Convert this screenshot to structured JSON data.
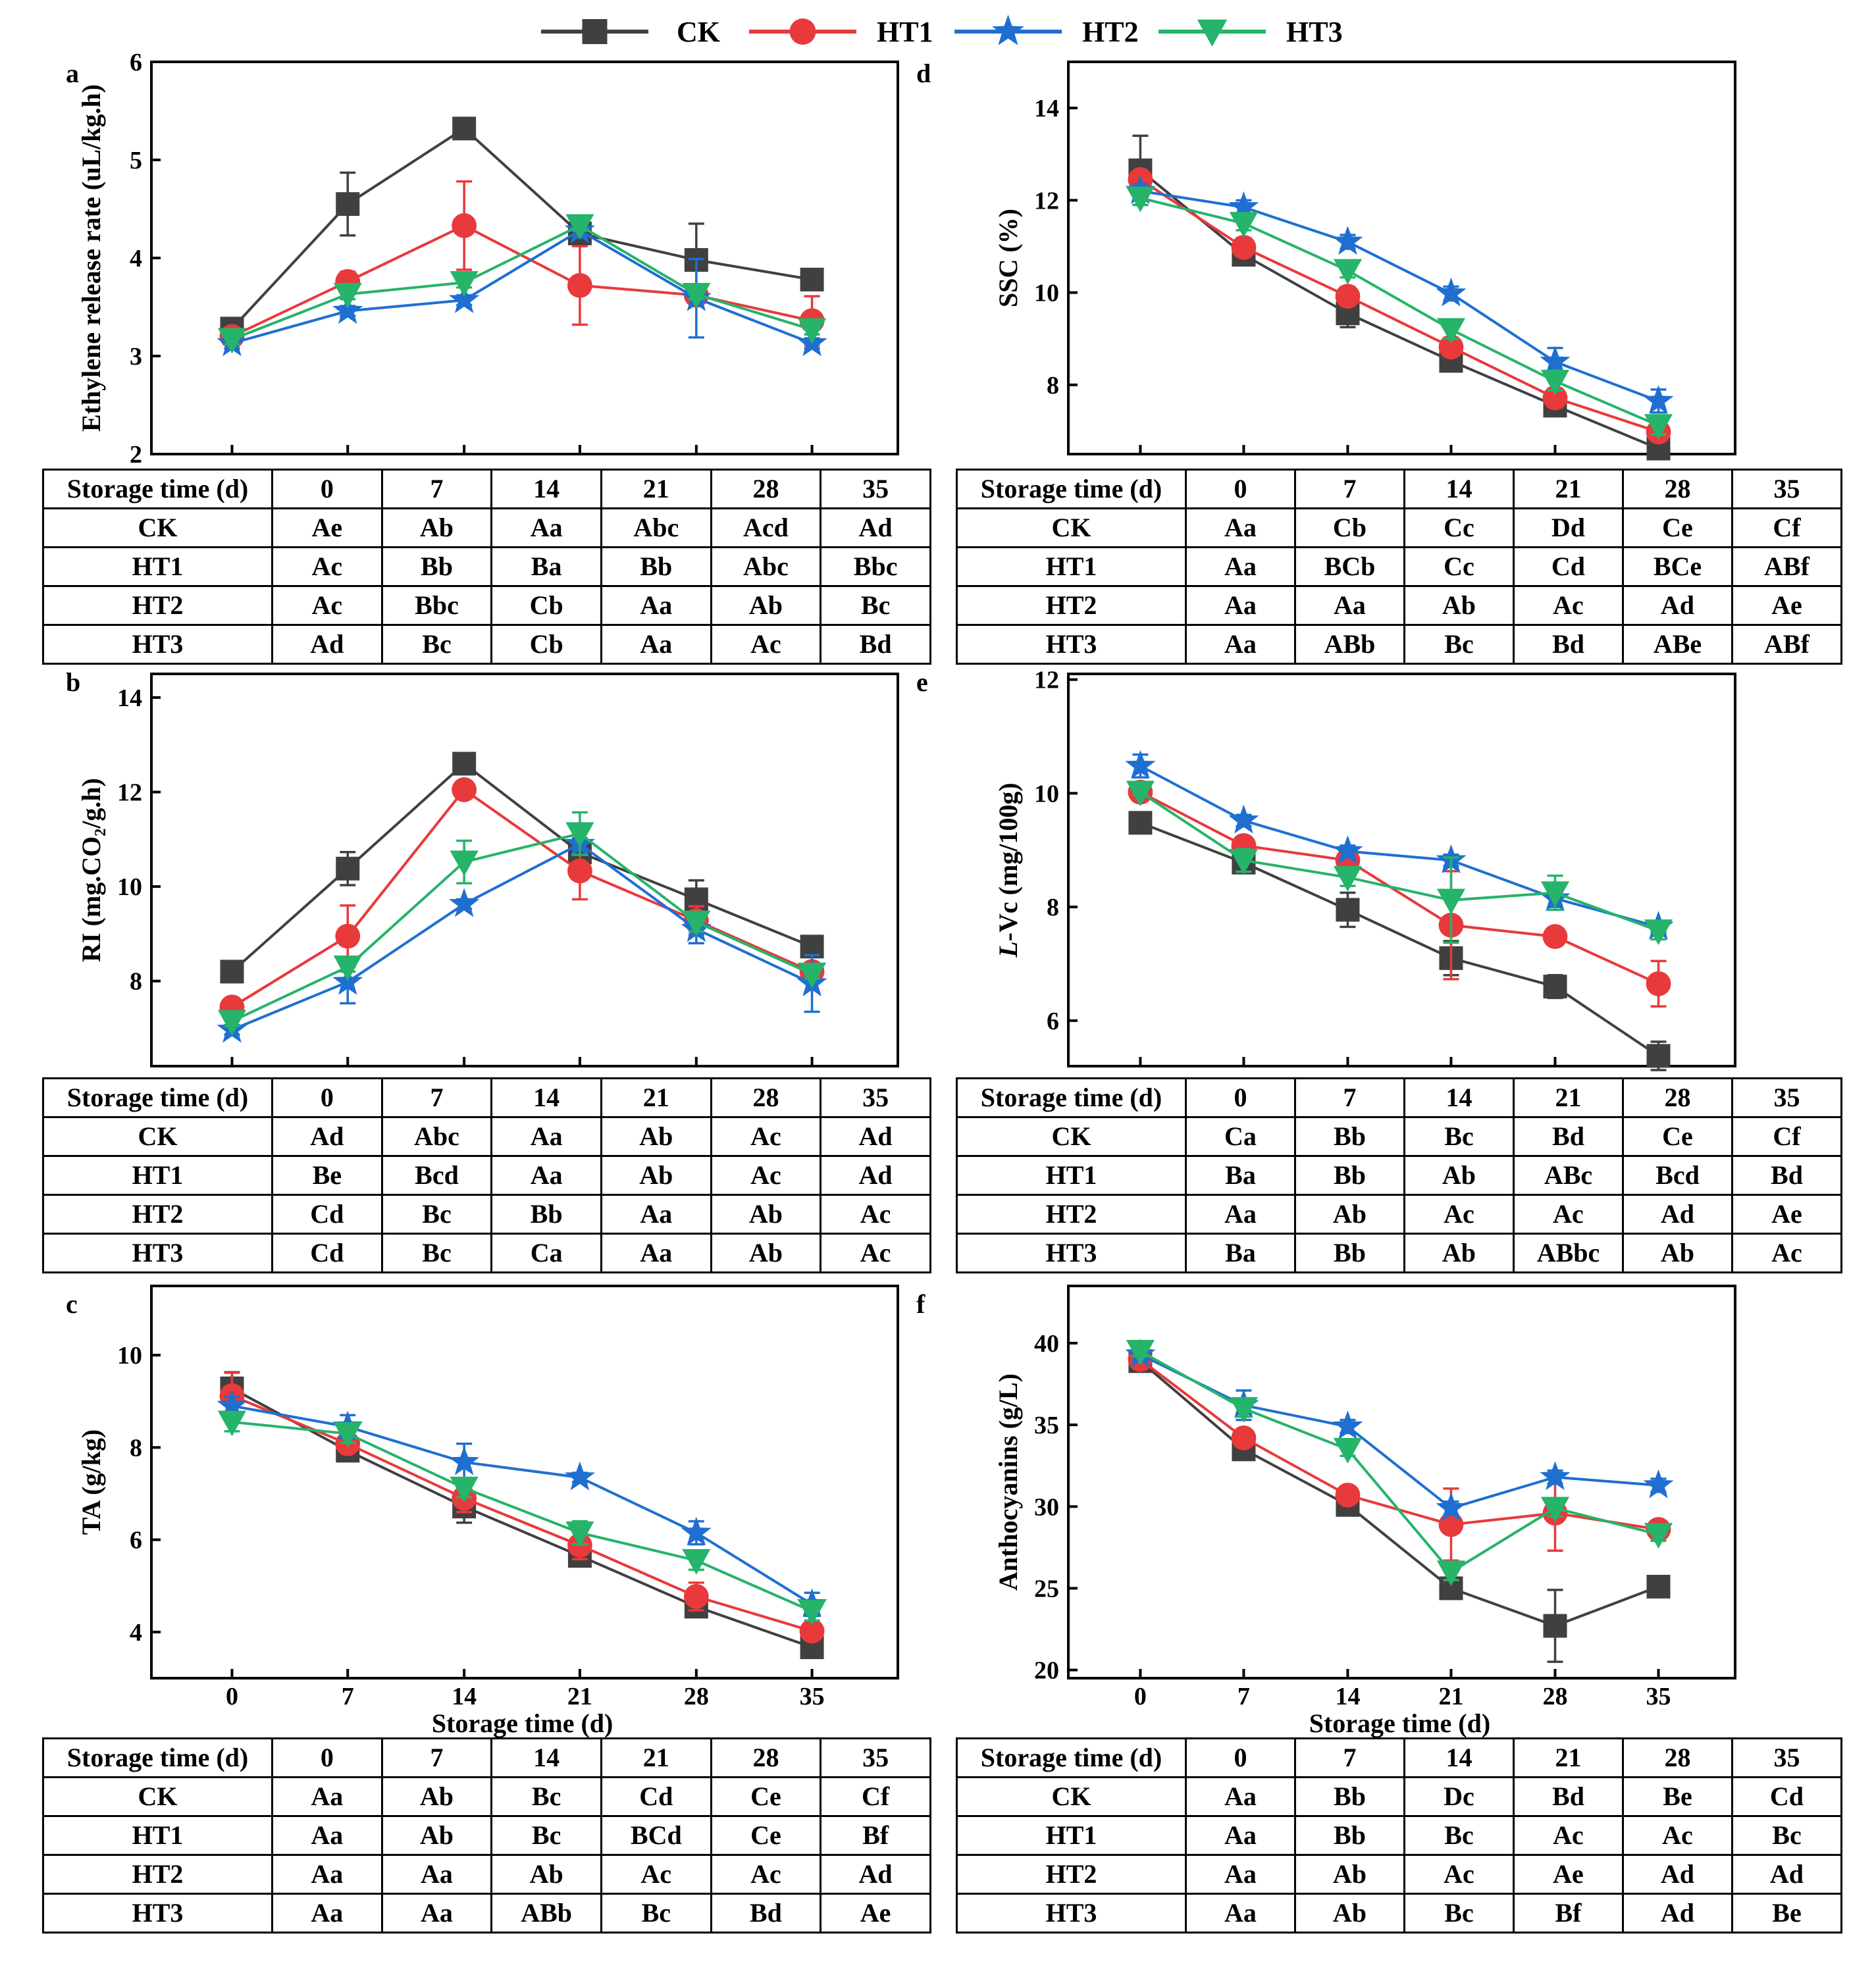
{
  "legend": [
    {
      "name": "CK",
      "color": "#404040",
      "marker": "square"
    },
    {
      "name": "HT1",
      "color": "#e8393b",
      "marker": "circle"
    },
    {
      "name": "HT2",
      "color": "#1f6fd1",
      "marker": "star"
    },
    {
      "name": "HT3",
      "color": "#26b36a",
      "marker": "triangle-down"
    }
  ],
  "chart_data": [
    {
      "panel": "a",
      "type": "line",
      "ylabel": "Ethylene release rate (uL/kg.h)",
      "xlabel": "",
      "x": [
        0,
        7,
        14,
        21,
        28,
        35
      ],
      "ylim": [
        2,
        6
      ],
      "yticks": [
        2,
        3,
        4,
        5,
        6
      ],
      "show_x_ticks": false,
      "series": [
        {
          "name": "CK",
          "values": [
            3.28,
            4.55,
            5.32,
            4.25,
            3.98,
            3.78
          ],
          "err": [
            0.05,
            0.32,
            0.06,
            0.05,
            0.37,
            0.08
          ]
        },
        {
          "name": "HT1",
          "values": [
            3.2,
            3.76,
            4.33,
            3.72,
            3.62,
            3.36
          ],
          "err": [
            0.05,
            0.1,
            0.45,
            0.4,
            0.05,
            0.25
          ]
        },
        {
          "name": "HT2",
          "values": [
            3.13,
            3.46,
            3.57,
            4.28,
            3.59,
            3.13
          ],
          "err": [
            0.05,
            0.05,
            0.05,
            0.05,
            0.4,
            0.05
          ]
        },
        {
          "name": "HT3",
          "values": [
            3.17,
            3.63,
            3.75,
            4.33,
            3.63,
            3.27
          ],
          "err": [
            0.05,
            0.05,
            0.05,
            0.05,
            0.05,
            0.05
          ]
        }
      ],
      "table": {
        "headers": [
          "Storage time (d)",
          "0",
          "7",
          "14",
          "21",
          "28",
          "35"
        ],
        "rows": [
          [
            "CK",
            "Ae",
            "Ab",
            "Aa",
            "Abc",
            "Acd",
            "Ad"
          ],
          [
            "HT1",
            "Ac",
            "Bb",
            "Ba",
            "Bb",
            "Abc",
            "Bbc"
          ],
          [
            "HT2",
            "Ac",
            "Bbc",
            "Cb",
            "Aa",
            "Ab",
            "Bc"
          ],
          [
            "HT3",
            "Ad",
            "Bc",
            "Cb",
            "Aa",
            "Ac",
            "Bd"
          ]
        ]
      }
    },
    {
      "panel": "b",
      "type": "line",
      "ylabel": "RI (mg.CO₂/g.h)",
      "xlabel": "",
      "x": [
        0,
        7,
        14,
        21,
        28,
        35
      ],
      "ylim": [
        6.2,
        14.5
      ],
      "yticks": [
        8,
        10,
        12,
        14
      ],
      "show_x_ticks": false,
      "series": [
        {
          "name": "CK",
          "values": [
            8.2,
            10.38,
            12.6,
            10.72,
            9.73,
            8.73
          ],
          "err": [
            0.1,
            0.35,
            0.1,
            0.3,
            0.4,
            0.1
          ]
        },
        {
          "name": "HT1",
          "values": [
            7.45,
            8.95,
            12.05,
            10.33,
            9.28,
            8.2
          ],
          "err": [
            0.1,
            0.65,
            0.1,
            0.6,
            0.3,
            0.1
          ]
        },
        {
          "name": "HT2",
          "values": [
            6.97,
            7.98,
            9.63,
            10.9,
            9.1,
            7.95
          ],
          "err": [
            0.1,
            0.45,
            0.1,
            0.1,
            0.3,
            0.6
          ]
        },
        {
          "name": "HT3",
          "values": [
            7.15,
            8.3,
            10.52,
            11.12,
            9.25,
            8.15
          ],
          "err": [
            0.1,
            0.1,
            0.45,
            0.45,
            0.2,
            0.1
          ]
        }
      ],
      "table": {
        "headers": [
          "Storage time (d)",
          "0",
          "7",
          "14",
          "21",
          "28",
          "35"
        ],
        "rows": [
          [
            "CK",
            "Ad",
            "Abc",
            "Aa",
            "Ab",
            "Ac",
            "Ad"
          ],
          [
            "HT1",
            "Be",
            "Bcd",
            "Aa",
            "Ab",
            "Ac",
            "Ad"
          ],
          [
            "HT2",
            "Cd",
            "Bc",
            "Bb",
            "Aa",
            "Ab",
            "Ac"
          ],
          [
            "HT3",
            "Cd",
            "Bc",
            "Ca",
            "Aa",
            "Ab",
            "Ac"
          ]
        ]
      }
    },
    {
      "panel": "c",
      "type": "line",
      "ylabel": "TA (g/kg)",
      "xlabel": "Storage time (d)",
      "x": [
        0,
        7,
        14,
        21,
        28,
        35
      ],
      "ylim": [
        3,
        11.5
      ],
      "yticks": [
        4,
        6,
        8,
        10
      ],
      "show_x_ticks": true,
      "series": [
        {
          "name": "CK",
          "values": [
            9.28,
            7.93,
            6.72,
            5.65,
            4.55,
            3.67
          ],
          "err": [
            0.35,
            0.15,
            0.35,
            0.15,
            0.15,
            0.1
          ]
        },
        {
          "name": "HT1",
          "values": [
            9.12,
            8.08,
            6.9,
            5.88,
            4.77,
            4.02
          ],
          "err": [
            0.5,
            0.15,
            0.3,
            0.3,
            0.3,
            0.15
          ]
        },
        {
          "name": "HT2",
          "values": [
            8.9,
            8.45,
            7.68,
            7.35,
            6.15,
            4.6
          ],
          "err": [
            0.2,
            0.25,
            0.4,
            0.1,
            0.25,
            0.25
          ]
        },
        {
          "name": "HT3",
          "values": [
            8.55,
            8.3,
            7.12,
            6.15,
            5.55,
            4.45
          ],
          "err": [
            0.2,
            0.2,
            0.2,
            0.25,
            0.2,
            0.2
          ]
        }
      ],
      "table": {
        "headers": [
          "Storage time (d)",
          "0",
          "7",
          "14",
          "21",
          "28",
          "35"
        ],
        "rows": [
          [
            "CK",
            "Aa",
            "Ab",
            "Bc",
            "Cd",
            "Ce",
            "Cf"
          ],
          [
            "HT1",
            "Aa",
            "Ab",
            "Bc",
            "BCd",
            "Ce",
            "Bf"
          ],
          [
            "HT2",
            "Aa",
            "Aa",
            "Ab",
            "Ac",
            "Ac",
            "Ad"
          ],
          [
            "HT3",
            "Aa",
            "Aa",
            "ABb",
            "Bc",
            "Bd",
            "Ae"
          ]
        ]
      }
    },
    {
      "panel": "d",
      "type": "line",
      "ylabel": "SSC (%)",
      "xlabel": "",
      "x": [
        0,
        7,
        14,
        21,
        28,
        35
      ],
      "ylim": [
        6.5,
        15
      ],
      "yticks": [
        8,
        10,
        12,
        14
      ],
      "show_x_ticks": false,
      "series": [
        {
          "name": "CK",
          "values": [
            12.65,
            10.82,
            9.55,
            8.52,
            7.55,
            6.62
          ],
          "err": [
            0.75,
            0.15,
            0.3,
            0.15,
            0.15,
            0.1
          ]
        },
        {
          "name": "HT1",
          "values": [
            12.45,
            10.98,
            9.92,
            8.82,
            7.72,
            6.98
          ],
          "err": [
            0.15,
            0.2,
            0.2,
            0.2,
            0.2,
            0.2
          ]
        },
        {
          "name": "HT2",
          "values": [
            12.2,
            11.85,
            11.1,
            9.98,
            8.5,
            7.65
          ],
          "err": [
            0.15,
            0.15,
            0.15,
            0.15,
            0.3,
            0.25
          ]
        },
        {
          "name": "HT3",
          "values": [
            12.05,
            11.5,
            10.48,
            9.2,
            8.08,
            7.12
          ],
          "err": [
            0.15,
            0.15,
            0.15,
            0.2,
            0.2,
            0.2
          ]
        }
      ],
      "table": {
        "headers": [
          "Storage time (d)",
          "0",
          "7",
          "14",
          "21",
          "28",
          "35"
        ],
        "rows": [
          [
            "CK",
            "Aa",
            "Cb",
            "Cc",
            "Dd",
            "Ce",
            "Cf"
          ],
          [
            "HT1",
            "Aa",
            "BCb",
            "Cc",
            "Cd",
            "BCe",
            "ABf"
          ],
          [
            "HT2",
            "Aa",
            "Aa",
            "Ab",
            "Ac",
            "Ad",
            "Ae"
          ],
          [
            "HT3",
            "Aa",
            "ABb",
            "Bc",
            "Bd",
            "ABe",
            "ABf"
          ]
        ]
      }
    },
    {
      "panel": "e",
      "type": "line",
      "ylabel": "L-Vc (mg/100g)",
      "ylabel_italic_part": "L",
      "xlabel": "",
      "x": [
        0,
        7,
        14,
        21,
        28,
        35
      ],
      "ylim": [
        5.2,
        12.1
      ],
      "yticks": [
        6,
        8,
        10,
        12
      ],
      "show_x_ticks": false,
      "series": [
        {
          "name": "CK",
          "values": [
            9.48,
            8.78,
            7.95,
            7.1,
            6.6,
            5.38
          ],
          "err": [
            0.05,
            0.15,
            0.3,
            0.3,
            0.2,
            0.25
          ]
        },
        {
          "name": "HT1",
          "values": [
            10.02,
            9.08,
            8.82,
            7.68,
            7.48,
            6.65
          ],
          "err": [
            0.05,
            0.15,
            0.15,
            0.95,
            0.1,
            0.4
          ]
        },
        {
          "name": "HT2",
          "values": [
            10.48,
            9.52,
            8.98,
            8.82,
            8.15,
            7.65
          ],
          "err": [
            0.2,
            0.1,
            0.1,
            0.1,
            0.15,
            0.1
          ]
        },
        {
          "name": "HT3",
          "values": [
            10.02,
            8.82,
            8.52,
            8.12,
            8.25,
            7.58
          ],
          "err": [
            0.05,
            0.2,
            0.15,
            0.75,
            0.3,
            0.15
          ]
        }
      ],
      "table": {
        "headers": [
          "Storage time (d)",
          "0",
          "7",
          "14",
          "21",
          "28",
          "35"
        ],
        "rows": [
          [
            "CK",
            "Ca",
            "Bb",
            "Bc",
            "Bd",
            "Ce",
            "Cf"
          ],
          [
            "HT1",
            "Ba",
            "Bb",
            "Ab",
            "ABc",
            "Bcd",
            "Bd"
          ],
          [
            "HT2",
            "Aa",
            "Ab",
            "Ac",
            "Ac",
            "Ad",
            "Ae"
          ],
          [
            "HT3",
            "Ba",
            "Bb",
            "Ab",
            "ABbc",
            "Ab",
            "Ac"
          ]
        ]
      }
    },
    {
      "panel": "f",
      "type": "line",
      "ylabel": "Anthocyanins (g/L)",
      "xlabel": "Storage time (d)",
      "x": [
        0,
        7,
        14,
        21,
        28,
        35
      ],
      "ylim": [
        19.5,
        43.5
      ],
      "yticks": [
        20,
        25,
        30,
        35,
        40
      ],
      "show_x_ticks": true,
      "series": [
        {
          "name": "CK",
          "values": [
            38.9,
            33.5,
            30.1,
            25.0,
            22.7,
            25.1
          ],
          "err": [
            0.3,
            0.4,
            0.4,
            0.3,
            2.2,
            0.3
          ]
        },
        {
          "name": "HT1",
          "values": [
            39.0,
            34.2,
            30.7,
            28.9,
            29.6,
            28.6
          ],
          "err": [
            0.3,
            0.4,
            0.4,
            2.2,
            2.3,
            0.4
          ]
        },
        {
          "name": "HT2",
          "values": [
            39.3,
            36.2,
            34.9,
            29.9,
            31.8,
            31.3
          ],
          "err": [
            0.3,
            0.9,
            0.4,
            0.4,
            0.4,
            0.4
          ]
        },
        {
          "name": "HT3",
          "values": [
            39.5,
            36.0,
            33.5,
            26.0,
            29.9,
            28.3
          ],
          "err": [
            0.3,
            0.5,
            0.4,
            0.5,
            0.5,
            0.4
          ]
        }
      ],
      "table": {
        "headers": [
          "Storage time (d)",
          "0",
          "7",
          "14",
          "21",
          "28",
          "35"
        ],
        "rows": [
          [
            "CK",
            "Aa",
            "Bb",
            "Dc",
            "Bd",
            "Be",
            "Cd"
          ],
          [
            "HT1",
            "Aa",
            "Bb",
            "Bc",
            "Ac",
            "Ac",
            "Bc"
          ],
          [
            "HT2",
            "Aa",
            "Ab",
            "Ac",
            "Ae",
            "Ad",
            "Ad"
          ],
          [
            "HT3",
            "Aa",
            "Ab",
            "Bc",
            "Bf",
            "Ad",
            "Be"
          ]
        ]
      }
    }
  ]
}
